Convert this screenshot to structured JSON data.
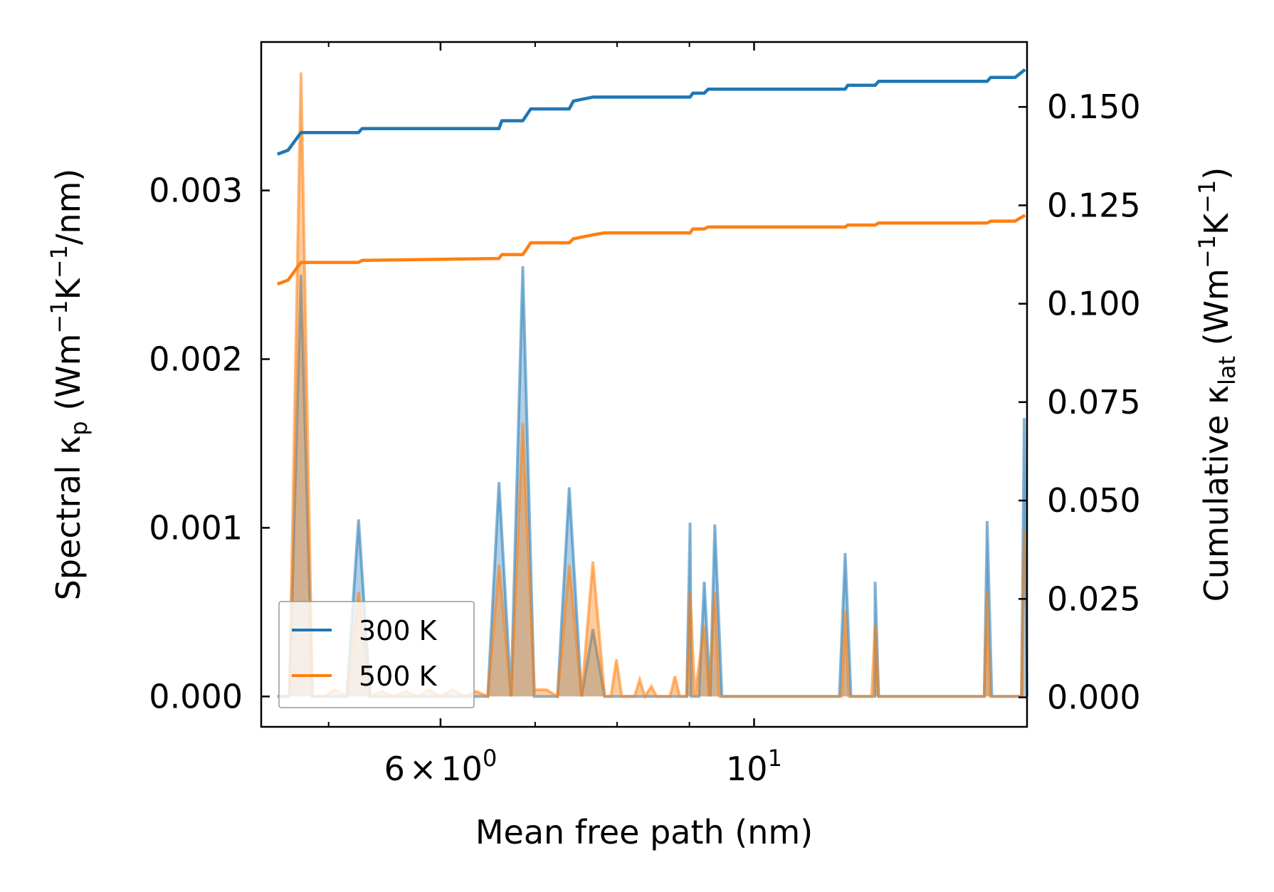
{
  "chart_data": {
    "type": "line",
    "title": "",
    "xlabel": "Mean free path (nm)",
    "ylabel_left": {
      "main": "Spectral κ",
      "sub": "p",
      "unit_open": " (Wm",
      "sup1": "−1",
      "mid": "K",
      "sup2": "−1",
      "unit_close": "/nm)"
    },
    "ylabel_right": {
      "main": "Cumulative κ",
      "sub": "lat",
      "unit_open": " (Wm",
      "sup1": "−1",
      "mid": "K",
      "sup2": "−1",
      "unit_close": ")"
    },
    "x_scale": "log",
    "xlim": [
      4.48,
      15.6
    ],
    "ylim_left": [
      -0.00018,
      0.00388
    ],
    "ylim_right": [
      -0.0075,
      0.1665
    ],
    "x_ticks": [
      {
        "value": 6,
        "base": "6",
        "times": "×",
        "pow_base": "10",
        "exp": "0"
      },
      {
        "value": 10,
        "pow_base": "10",
        "exp": "1"
      }
    ],
    "x_minor_ticks": [
      5,
      7,
      8,
      9
    ],
    "y_left_ticks": [
      {
        "value": 0,
        "label": "0.000"
      },
      {
        "value": 0.001,
        "label": "0.001"
      },
      {
        "value": 0.002,
        "label": "0.002"
      },
      {
        "value": 0.003,
        "label": "0.003"
      }
    ],
    "y_right_ticks": [
      {
        "value": 0,
        "label": "0.000"
      },
      {
        "value": 0.025,
        "label": "0.025"
      },
      {
        "value": 0.05,
        "label": "0.050"
      },
      {
        "value": 0.075,
        "label": "0.075"
      },
      {
        "value": 0.1,
        "label": "0.100"
      },
      {
        "value": 0.125,
        "label": "0.125"
      },
      {
        "value": 0.15,
        "label": "0.150"
      }
    ],
    "legend": {
      "position": "lower-left",
      "entries": [
        "300 K",
        "500 K"
      ]
    },
    "series": [
      {
        "name": "300 K",
        "color": "#1f77b4",
        "spectral": [
          [
            4.6,
            0
          ],
          [
            4.69,
            0
          ],
          [
            4.78,
            0.0025
          ],
          [
            4.87,
            0
          ],
          [
            4.96,
            0
          ],
          [
            5.05,
            0
          ],
          [
            5.15,
            0
          ],
          [
            5.25,
            0.00105
          ],
          [
            5.35,
            0
          ],
          [
            5.45,
            0
          ],
          [
            5.56,
            0
          ],
          [
            5.67,
            0
          ],
          [
            5.78,
            0
          ],
          [
            5.89,
            0
          ],
          [
            6.0,
            0
          ],
          [
            6.12,
            0
          ],
          [
            6.24,
            0
          ],
          [
            6.36,
            0
          ],
          [
            6.48,
            0
          ],
          [
            6.6,
            0.00127
          ],
          [
            6.73,
            0
          ],
          [
            6.86,
            0.00255
          ],
          [
            6.99,
            0
          ],
          [
            7.13,
            0
          ],
          [
            7.26,
            0
          ],
          [
            7.4,
            0.00124
          ],
          [
            7.55,
            0
          ],
          [
            7.69,
            0.0004
          ],
          [
            7.84,
            0
          ],
          [
            7.99,
            0
          ],
          [
            8.15,
            0
          ],
          [
            8.3,
            0
          ],
          [
            8.46,
            0
          ],
          [
            8.63,
            0
          ],
          [
            8.79,
            0
          ],
          [
            8.96,
            0
          ],
          [
            9.14,
            0
          ],
          [
            9.31,
            0
          ],
          [
            9.49,
            0
          ],
          [
            9.68,
            0
          ],
          [
            9.86,
            0
          ],
          [
            10.05,
            0
          ],
          [
            10.25,
            0
          ],
          [
            10.44,
            0
          ],
          [
            10.65,
            0
          ],
          [
            10.85,
            0
          ],
          [
            11.06,
            0
          ],
          [
            11.28,
            0
          ],
          [
            11.49,
            0
          ],
          [
            11.71,
            0
          ],
          [
            11.94,
            0
          ],
          [
            12.17,
            0
          ],
          [
            12.41,
            0
          ],
          [
            12.64,
            0
          ],
          [
            12.89,
            0
          ],
          [
            13.14,
            0
          ],
          [
            13.39,
            0
          ],
          [
            13.65,
            0
          ],
          [
            13.91,
            0
          ],
          [
            14.18,
            0
          ],
          [
            14.45,
            0
          ],
          [
            14.73,
            0
          ],
          [
            15.02,
            0
          ],
          [
            15.3,
            0
          ],
          [
            15.6,
            0
          ],
          [
            8.88,
            0
          ],
          [
            9.03,
            0
          ]
        ],
        "spectral_peaks": [
          [
            9.01,
            0.00103
          ],
          [
            9.22,
            0.00068
          ],
          [
            9.38,
            0.00102
          ],
          [
            11.6,
            0.00085
          ],
          [
            12.18,
            0.00068
          ],
          [
            14.62,
            0.00104
          ],
          [
            15.53,
            0.00165
          ]
        ],
        "cumulative": [
          [
            4.6,
            0.138
          ],
          [
            4.68,
            0.139
          ],
          [
            4.78,
            0.1435
          ],
          [
            5.25,
            0.1435
          ],
          [
            5.28,
            0.1445
          ],
          [
            6.6,
            0.1445
          ],
          [
            6.63,
            0.1465
          ],
          [
            6.86,
            0.1465
          ],
          [
            6.95,
            0.1495
          ],
          [
            7.4,
            0.1495
          ],
          [
            7.45,
            0.1515
          ],
          [
            7.69,
            0.1525
          ],
          [
            9.01,
            0.1525
          ],
          [
            9.05,
            0.1535
          ],
          [
            9.22,
            0.1535
          ],
          [
            9.28,
            0.1545
          ],
          [
            11.6,
            0.1545
          ],
          [
            11.65,
            0.1555
          ],
          [
            12.18,
            0.1555
          ],
          [
            12.25,
            0.1565
          ],
          [
            14.62,
            0.1565
          ],
          [
            14.7,
            0.1575
          ],
          [
            15.3,
            0.1575
          ],
          [
            15.55,
            0.1595
          ]
        ]
      },
      {
        "name": "500 K",
        "color": "#ff7f0e",
        "spectral": [
          [
            4.6,
            0
          ],
          [
            4.69,
            0
          ],
          [
            4.78,
            0.0037
          ],
          [
            4.87,
            0
          ],
          [
            4.96,
            0
          ],
          [
            5.05,
            4e-05
          ],
          [
            5.15,
            0
          ],
          [
            5.25,
            0.00062
          ],
          [
            5.35,
            0
          ],
          [
            5.45,
            3e-05
          ],
          [
            5.56,
            0
          ],
          [
            5.67,
            3e-05
          ],
          [
            5.78,
            0
          ],
          [
            5.89,
            4e-05
          ],
          [
            6.0,
            0
          ],
          [
            6.12,
            4e-05
          ],
          [
            6.24,
            0
          ],
          [
            6.36,
            3e-05
          ],
          [
            6.48,
            0
          ],
          [
            6.6,
            0.00078
          ],
          [
            6.73,
            0
          ],
          [
            6.86,
            0.00162
          ],
          [
            6.99,
            4e-05
          ],
          [
            7.13,
            4e-05
          ],
          [
            7.26,
            0
          ],
          [
            7.4,
            0.00078
          ],
          [
            7.55,
            0
          ],
          [
            7.69,
            0.0008
          ],
          [
            7.84,
            0
          ],
          [
            7.99,
            0.00022
          ],
          [
            8.15,
            0
          ],
          [
            8.3,
            0.0001
          ],
          [
            8.46,
            6e-05
          ],
          [
            8.63,
            0
          ],
          [
            8.79,
            0.00012
          ],
          [
            8.96,
            0
          ]
        ],
        "spectral_peaks": [
          [
            9.01,
            0.00062
          ],
          [
            9.22,
            0.00042
          ],
          [
            9.38,
            0.00062
          ],
          [
            11.6,
            0.00051
          ],
          [
            12.18,
            0.00042
          ],
          [
            14.62,
            0.00062
          ],
          [
            15.53,
            0.00098
          ]
        ],
        "cumulative": [
          [
            4.6,
            0.105
          ],
          [
            4.68,
            0.106
          ],
          [
            4.78,
            0.1105
          ],
          [
            5.25,
            0.1105
          ],
          [
            5.28,
            0.111
          ],
          [
            6.6,
            0.1115
          ],
          [
            6.63,
            0.1125
          ],
          [
            6.86,
            0.1125
          ],
          [
            6.95,
            0.1155
          ],
          [
            7.4,
            0.1155
          ],
          [
            7.45,
            0.1165
          ],
          [
            7.69,
            0.1175
          ],
          [
            7.84,
            0.118
          ],
          [
            8.3,
            0.118
          ],
          [
            9.01,
            0.118
          ],
          [
            9.05,
            0.119
          ],
          [
            9.22,
            0.119
          ],
          [
            9.28,
            0.1195
          ],
          [
            11.6,
            0.1195
          ],
          [
            11.65,
            0.12
          ],
          [
            12.18,
            0.12
          ],
          [
            12.25,
            0.1205
          ],
          [
            14.62,
            0.1205
          ],
          [
            14.7,
            0.121
          ],
          [
            15.3,
            0.121
          ],
          [
            15.55,
            0.1225
          ]
        ]
      }
    ]
  }
}
